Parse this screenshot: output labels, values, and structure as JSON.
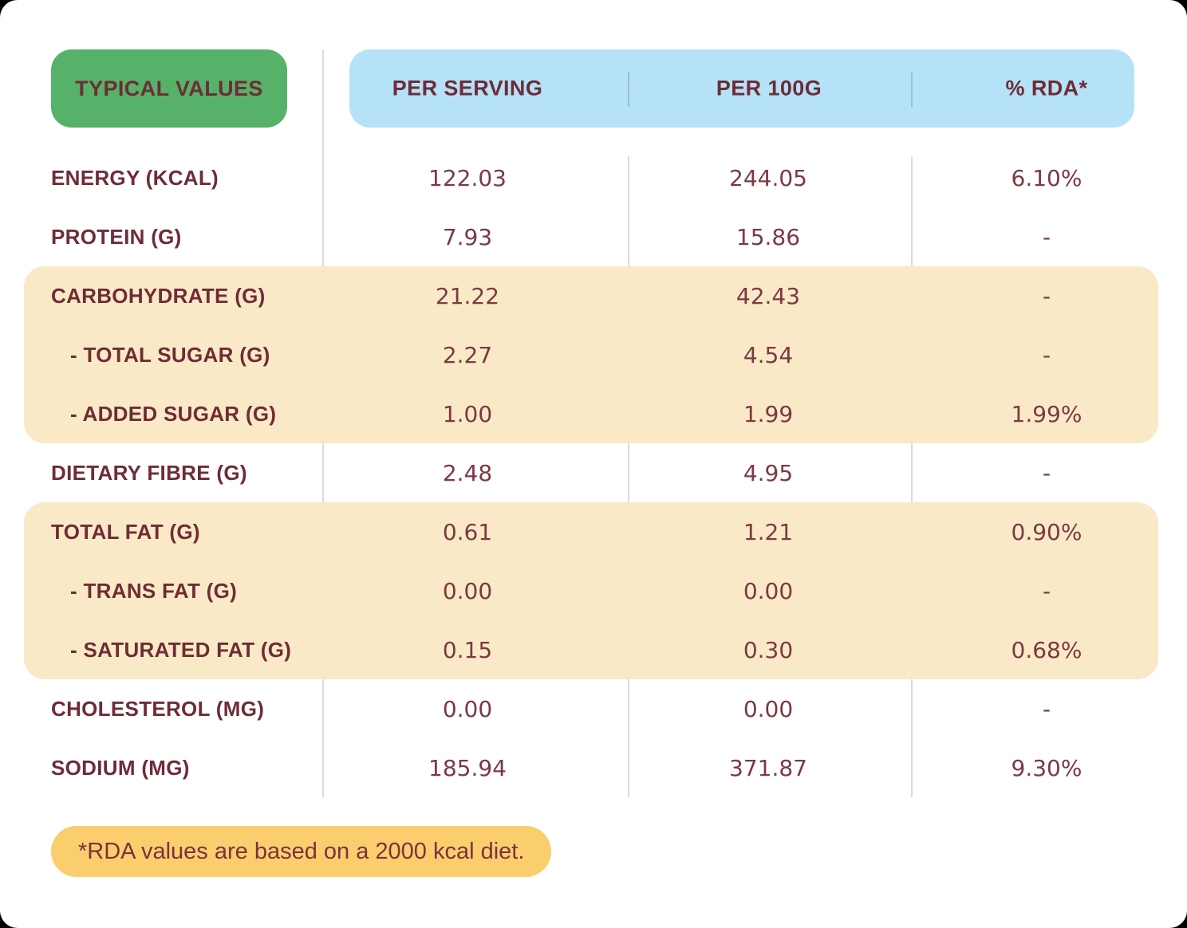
{
  "header": {
    "corner_label": "TYPICAL VALUES"
  },
  "footer": {
    "note": "*RDA values are based on a 2000 kcal diet."
  },
  "colors": {
    "badge_green": "#56B269",
    "header_blue": "#B6E2F8",
    "highlight_cream": "#FAE9C6",
    "footnote_yellow": "#FBCE6D",
    "label_maroon": "#6E2C37",
    "value_maroon": "#7B3944",
    "page_background": "#FFFFFF"
  },
  "chart_data": {
    "type": "table",
    "title": "Typical Values",
    "columns": [
      "PER SERVING",
      "PER 100G",
      "% RDA*"
    ],
    "rows": [
      {
        "label": "ENERGY (KCAL)",
        "per_serving": "122.03",
        "per_100g": "244.05",
        "rda": "6.10%"
      },
      {
        "label": "PROTEIN (G)",
        "per_serving": "7.93",
        "per_100g": "15.86",
        "rda": "-"
      },
      {
        "label": "CARBOHYDRATE (G)",
        "per_serving": "21.22",
        "per_100g": "42.43",
        "rda": "-"
      },
      {
        "label": "- TOTAL SUGAR (G)",
        "per_serving": "2.27",
        "per_100g": "4.54",
        "rda": "-"
      },
      {
        "label": "- ADDED SUGAR (G)",
        "per_serving": "1.00",
        "per_100g": "1.99",
        "rda": "1.99%"
      },
      {
        "label": "DIETARY FIBRE (G)",
        "per_serving": "2.48",
        "per_100g": "4.95",
        "rda": "-"
      },
      {
        "label": "TOTAL FAT (G)",
        "per_serving": "0.61",
        "per_100g": "1.21",
        "rda": "0.90%"
      },
      {
        "label": "- TRANS FAT (G)",
        "per_serving": "0.00",
        "per_100g": "0.00",
        "rda": "-"
      },
      {
        "label": "- SATURATED FAT (G)",
        "per_serving": "0.15",
        "per_100g": "0.30",
        "rda": "0.68%"
      },
      {
        "label": "CHOLESTEROL (MG)",
        "per_serving": "0.00",
        "per_100g": "0.00",
        "rda": "-"
      },
      {
        "label": "SODIUM (MG)",
        "per_serving": "185.94",
        "per_100g": "371.87",
        "rda": "9.30%"
      }
    ],
    "highlighted_row_indices": [
      2,
      3,
      4,
      6,
      7,
      8
    ],
    "layout": {
      "grid": "off",
      "legend": "none"
    }
  }
}
